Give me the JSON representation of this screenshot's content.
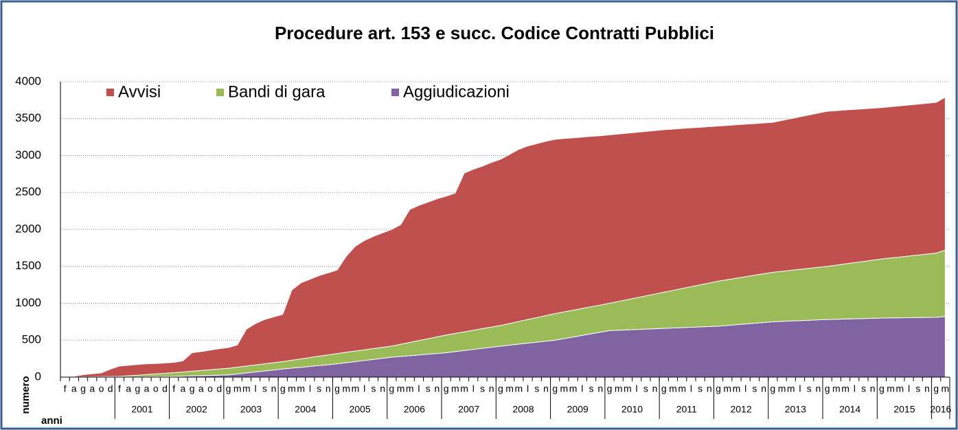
{
  "chart_data": {
    "type": "stacked_area",
    "title": "Procedure art. 153 e succ. Codice Contratti Pubblici",
    "y_label": "numero",
    "x_label": "anni",
    "categories": [
      "f",
      "a",
      "g",
      "a",
      "o",
      "d",
      "f",
      "a",
      "g",
      "a",
      "o",
      "d",
      "f",
      "a",
      "g",
      "a",
      "o",
      "d",
      "g",
      "m",
      "m",
      "l",
      "s",
      "n",
      "g",
      "m",
      "m",
      "l",
      "s",
      "n",
      "g",
      "m",
      "m",
      "l",
      "s",
      "n",
      "g",
      "m",
      "m",
      "l",
      "s",
      "n",
      "g",
      "m",
      "m",
      "l",
      "s",
      "n",
      "g",
      "m",
      "m",
      "l",
      "s",
      "n",
      "g",
      "m",
      "m",
      "l",
      "s",
      "n",
      "g",
      "m",
      "m",
      "l",
      "s",
      "n",
      "g",
      "m",
      "m",
      "l",
      "s",
      "n",
      "g",
      "m",
      "m",
      "l",
      "s",
      "n",
      "g",
      "m",
      "m",
      "l",
      "s",
      "n",
      "g",
      "m",
      "m",
      "l",
      "s",
      "n",
      "g",
      "m",
      "m",
      "l",
      "s",
      "n",
      "g",
      "m"
    ],
    "year_groups": [
      "2001",
      "2002",
      "2003",
      "2004",
      "2005",
      "2006",
      "2007",
      "2008",
      "2009",
      "2010",
      "2011",
      "2012",
      "2013",
      "2014",
      "2015",
      "2016"
    ],
    "series": [
      {
        "name": "Aggiudicazioni",
        "color": "#8064a2",
        "values": [
          0,
          0,
          0,
          0,
          0,
          0,
          0,
          2,
          3,
          5,
          7,
          8,
          10,
          13,
          17,
          20,
          23,
          27,
          30,
          43,
          57,
          70,
          83,
          97,
          110,
          122,
          133,
          145,
          157,
          168,
          180,
          195,
          210,
          225,
          240,
          255,
          270,
          280,
          290,
          300,
          310,
          320,
          330,
          345,
          360,
          375,
          390,
          405,
          420,
          433,
          447,
          460,
          473,
          487,
          500,
          522,
          543,
          565,
          587,
          608,
          630,
          635,
          640,
          645,
          650,
          655,
          660,
          665,
          670,
          675,
          680,
          685,
          690,
          700,
          710,
          720,
          730,
          740,
          750,
          755,
          760,
          765,
          770,
          775,
          780,
          783,
          787,
          790,
          793,
          797,
          800,
          802,
          803,
          805,
          807,
          808,
          810,
          820
        ]
      },
      {
        "name": "Bandi di gara",
        "color": "#9bbb59",
        "values": [
          0,
          2,
          3,
          5,
          7,
          8,
          10,
          17,
          23,
          30,
          37,
          43,
          50,
          57,
          63,
          70,
          77,
          83,
          90,
          92,
          93,
          95,
          97,
          98,
          100,
          107,
          113,
          120,
          127,
          133,
          140,
          142,
          143,
          145,
          147,
          148,
          150,
          165,
          180,
          195,
          210,
          225,
          240,
          247,
          253,
          260,
          267,
          273,
          280,
          293,
          307,
          320,
          333,
          347,
          360,
          362,
          363,
          365,
          367,
          368,
          370,
          390,
          410,
          430,
          450,
          470,
          490,
          510,
          530,
          550,
          570,
          590,
          610,
          620,
          630,
          640,
          650,
          660,
          670,
          678,
          687,
          695,
          703,
          712,
          720,
          733,
          747,
          760,
          773,
          787,
          800,
          812,
          823,
          835,
          847,
          858,
          870,
          900
        ]
      },
      {
        "name": "Avvisi",
        "color": "#c0504d",
        "values": [
          0,
          10,
          30,
          40,
          50,
          100,
          140,
          140,
          145,
          145,
          140,
          140,
          140,
          150,
          250,
          255,
          265,
          275,
          280,
          300,
          500,
          560,
          600,
          620,
          640,
          950,
          1030,
          1060,
          1090,
          1110,
          1130,
          1300,
          1420,
          1480,
          1520,
          1550,
          1580,
          1620,
          1800,
          1830,
          1850,
          1870,
          1880,
          1900,
          2150,
          2180,
          2200,
          2230,
          2250,
          2290,
          2330,
          2350,
          2355,
          2360,
          2360,
          2347,
          2333,
          2320,
          2307,
          2293,
          2280,
          2267,
          2253,
          2240,
          2227,
          2213,
          2200,
          2183,
          2167,
          2150,
          2133,
          2117,
          2100,
          2088,
          2077,
          2065,
          2053,
          2042,
          2030,
          2042,
          2053,
          2065,
          2077,
          2088,
          2100,
          2092,
          2083,
          2075,
          2067,
          2058,
          2050,
          2048,
          2047,
          2045,
          2043,
          2042,
          2040,
          2070
        ]
      }
    ],
    "ylim": [
      0,
      4000
    ],
    "yticks": [
      0,
      500,
      1000,
      1500,
      2000,
      2500,
      3000,
      3500,
      4000
    ],
    "grid": true
  }
}
